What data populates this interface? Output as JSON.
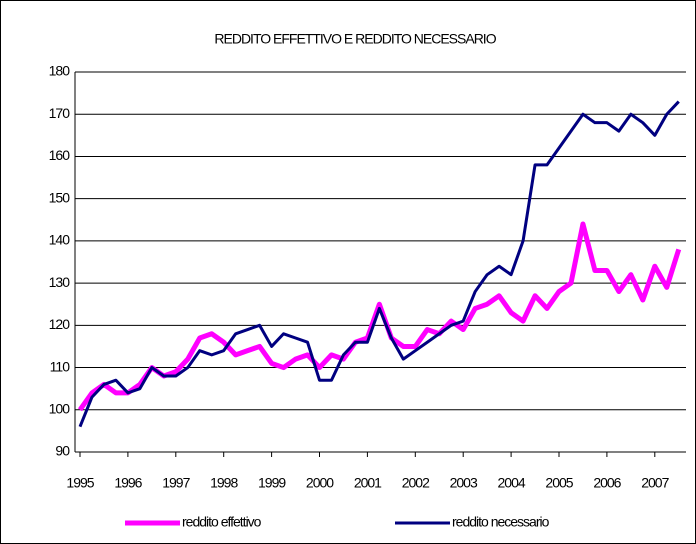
{
  "chart_data": {
    "type": "line",
    "title": "REDDITO EFFETTIVO E REDDITO NECESSARIO",
    "categories": [
      "1995",
      null,
      null,
      null,
      "1996",
      null,
      null,
      null,
      "1997",
      null,
      null,
      null,
      "1998",
      null,
      null,
      null,
      "1999",
      null,
      null,
      null,
      "2000",
      null,
      null,
      null,
      "2001",
      null,
      null,
      null,
      "2002",
      null,
      null,
      null,
      "2003",
      null,
      null,
      null,
      "2004",
      null,
      null,
      null,
      "2005",
      null,
      null,
      null,
      "2006",
      null,
      null,
      null,
      "2007",
      null,
      null
    ],
    "series": [
      {
        "name": "reddito effettivo",
        "color": "#ff00ff",
        "values": [
          100,
          104,
          106,
          104,
          104,
          106,
          110,
          108,
          109,
          112,
          117,
          118,
          116,
          113,
          114,
          115,
          111,
          110,
          112,
          113,
          110,
          113,
          112,
          116,
          117,
          125,
          117,
          115,
          115,
          119,
          118,
          121,
          119,
          124,
          125,
          127,
          123,
          121,
          127,
          124,
          128,
          130,
          144,
          133,
          133,
          128,
          132,
          126,
          134,
          129,
          138
        ]
      },
      {
        "name": "reddito necessario",
        "color": "#000080",
        "values": [
          96,
          103,
          106,
          107,
          104,
          105,
          110,
          108,
          108,
          110,
          114,
          113,
          114,
          118,
          119,
          120,
          115,
          118,
          117,
          116,
          107,
          107,
          113,
          116,
          116,
          124,
          117,
          112,
          114,
          116,
          118,
          120,
          121,
          128,
          132,
          134,
          132,
          140,
          158,
          158,
          162,
          166,
          170,
          168,
          168,
          166,
          170,
          168,
          165,
          170,
          173
        ]
      }
    ],
    "ylim": [
      90,
      180
    ],
    "yticks": [
      90,
      100,
      110,
      120,
      130,
      140,
      150,
      160,
      170,
      180
    ],
    "grid": true
  }
}
